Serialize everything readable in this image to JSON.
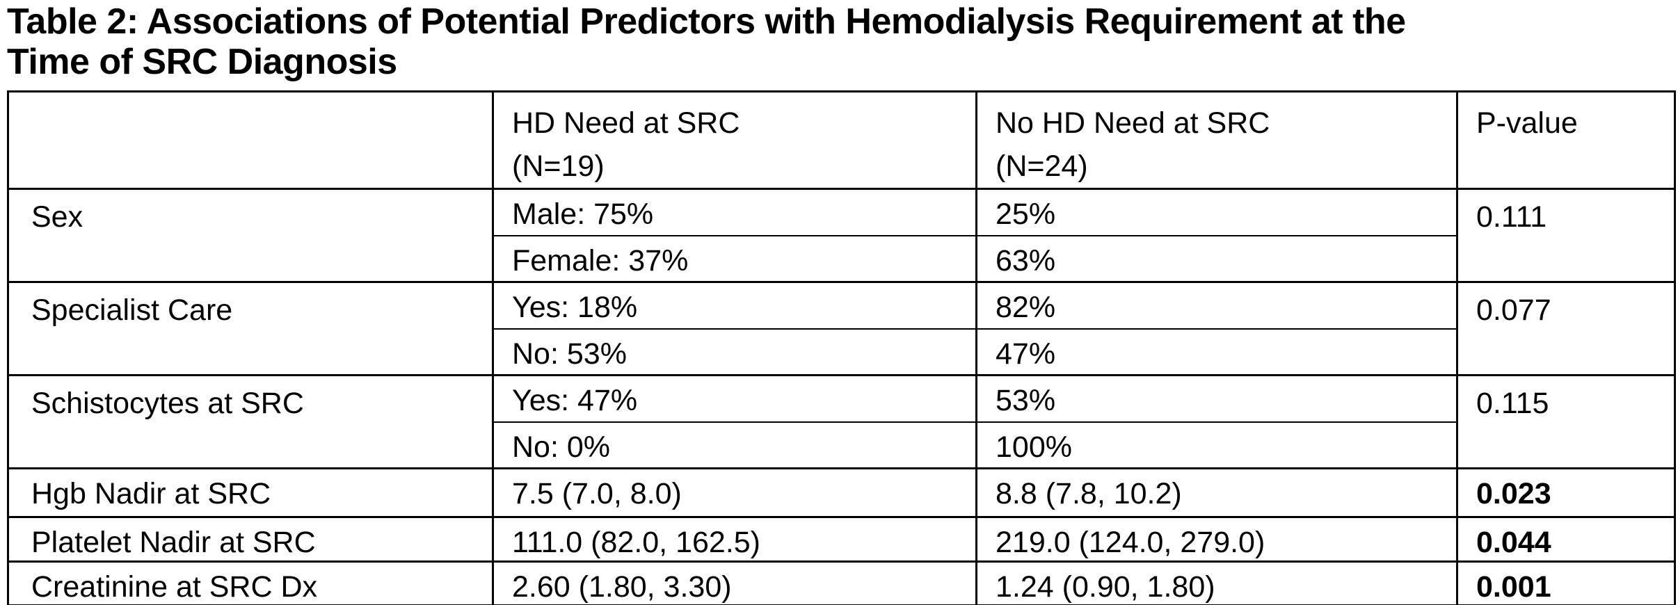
{
  "title": {
    "line1": "Table 2: Associations of Potential Predictors with Hemodialysis Requirement at the",
    "line2": "Time of SRC Diagnosis"
  },
  "colors": {
    "text": "#000000",
    "background": "#ffffff",
    "border": "#000000"
  },
  "table": {
    "header": {
      "col1": "",
      "col2": {
        "line1": "HD Need at SRC",
        "line2": "(N=19)"
      },
      "col3": {
        "line1": "No HD Need at SRC",
        "line2": "(N=24)"
      },
      "col4": "P-value"
    },
    "groups": [
      {
        "label": "Sex",
        "p_value": "0.111",
        "rows": [
          {
            "hd": "Male: 75%",
            "no_hd": "25%"
          },
          {
            "hd": "Female: 37%",
            "no_hd": "63%"
          }
        ]
      },
      {
        "label": "Specialist Care",
        "p_value": "0.077",
        "rows": [
          {
            "hd": "Yes: 18%",
            "no_hd": "82%"
          },
          {
            "hd": "No: 53%",
            "no_hd": "47%"
          }
        ]
      },
      {
        "label": "Schistocytes at SRC",
        "p_value": "0.115",
        "rows": [
          {
            "hd": "Yes: 47%",
            "no_hd": "53%"
          },
          {
            "hd": "No: 0%",
            "no_hd": "100%"
          }
        ]
      }
    ],
    "numeric_rows": [
      {
        "label": "Hgb Nadir at SRC",
        "hd": "7.5 (7.0, 8.0)",
        "no_hd": "8.8 (7.8, 10.2)",
        "p_value": "0.023"
      },
      {
        "label": "Platelet Nadir at SRC",
        "hd": "111.0 (82.0, 162.5)",
        "no_hd": "219.0 (124.0, 279.0)",
        "p_value": "0.044"
      },
      {
        "label": "Creatinine at SRC Dx",
        "hd": "2.60 (1.80, 3.30)",
        "no_hd": "1.24 (0.90, 1.80)",
        "p_value": "0.001"
      }
    ]
  }
}
